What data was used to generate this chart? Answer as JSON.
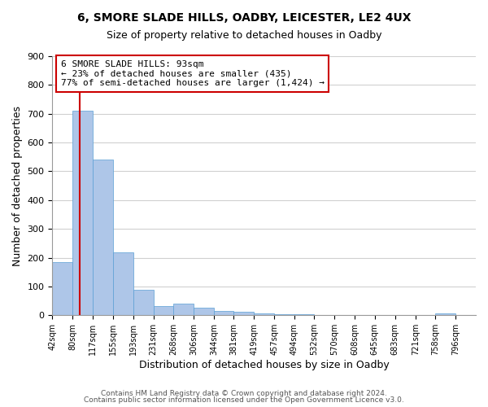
{
  "title1": "6, SMORE SLADE HILLS, OADBY, LEICESTER, LE2 4UX",
  "title2": "Size of property relative to detached houses in Oadby",
  "xlabel": "Distribution of detached houses by size in Oadby",
  "ylabel": "Number of detached properties",
  "footer1": "Contains HM Land Registry data © Crown copyright and database right 2024.",
  "footer2": "Contains public sector information licensed under the Open Government Licence v3.0.",
  "bin_labels": [
    "42sqm",
    "80sqm",
    "117sqm",
    "155sqm",
    "193sqm",
    "231sqm",
    "268sqm",
    "306sqm",
    "344sqm",
    "381sqm",
    "419sqm",
    "457sqm",
    "494sqm",
    "532sqm",
    "570sqm",
    "608sqm",
    "645sqm",
    "683sqm",
    "721sqm",
    "758sqm",
    "796sqm"
  ],
  "bar_heights": [
    185,
    710,
    540,
    220,
    90,
    33,
    40,
    27,
    15,
    12,
    6,
    5,
    3,
    0,
    0,
    0,
    0,
    0,
    0,
    8,
    0
  ],
  "bar_color": "#aec6e8",
  "bar_edge_color": "#5a9fd4",
  "property_line_x": 93,
  "property_line_color": "#cc0000",
  "annotation_line1": "6 SMORE SLADE HILLS: 93sqm",
  "annotation_line2": "← 23% of detached houses are smaller (435)",
  "annotation_line3": "77% of semi-detached houses are larger (1,424) →",
  "annotation_box_color": "#cc0000",
  "ylim": [
    0,
    900
  ],
  "yticks": [
    0,
    100,
    200,
    300,
    400,
    500,
    600,
    700,
    800,
    900
  ],
  "grid_color": "#d0d0d0",
  "background_color": "#ffffff",
  "bin_edges": [
    42,
    80,
    117,
    155,
    193,
    231,
    268,
    306,
    344,
    381,
    419,
    457,
    494,
    532,
    570,
    608,
    645,
    683,
    721,
    758,
    796,
    834
  ]
}
